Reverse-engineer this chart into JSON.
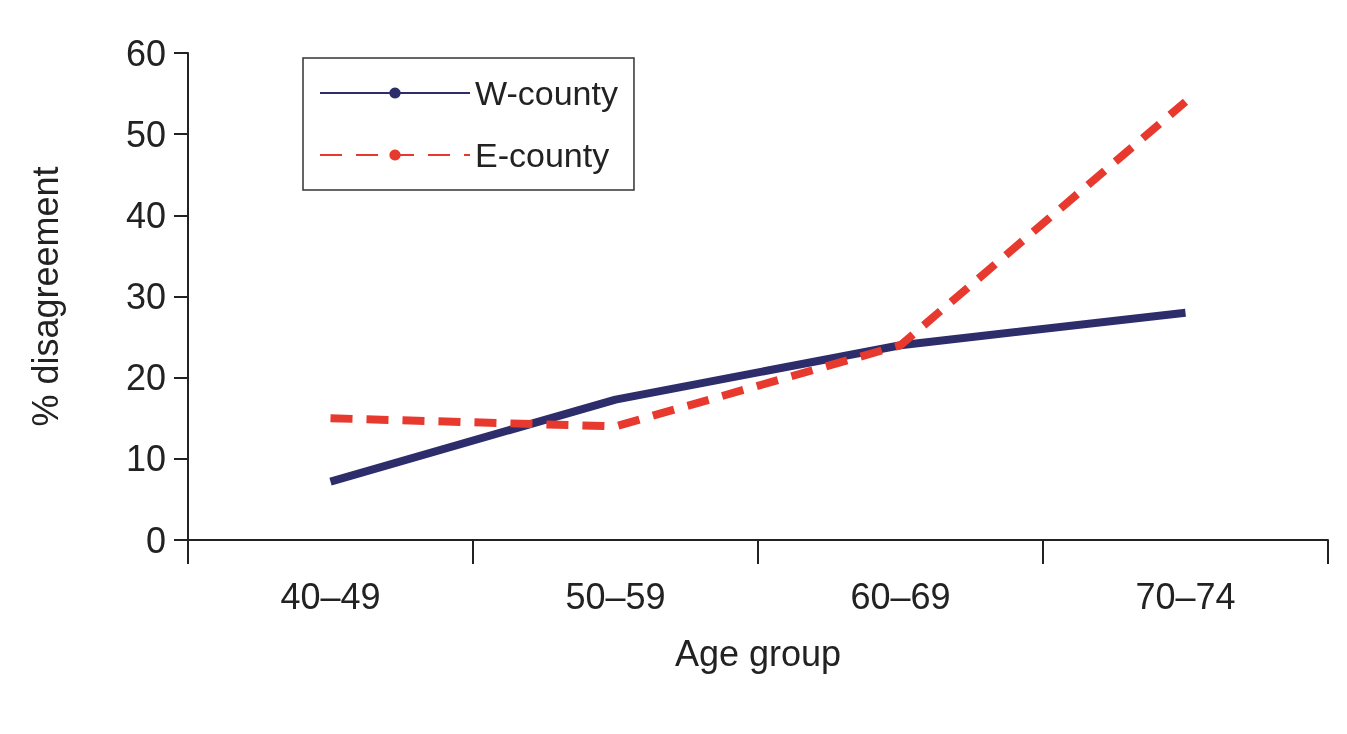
{
  "chart_data": {
    "type": "line",
    "xlabel": "Age group",
    "ylabel": "% disagreement",
    "categories": [
      "40–49",
      "50–59",
      "60–69",
      "70–74"
    ],
    "series": [
      {
        "name": "W-county",
        "color": "#2e2d6b",
        "line_style": "solid",
        "values": [
          7.2,
          17.3,
          24,
          28
        ]
      },
      {
        "name": "E-county",
        "color": "#e8392e",
        "line_style": "dashed",
        "values": [
          15,
          14,
          24,
          54
        ]
      }
    ],
    "ylim": [
      0,
      60
    ],
    "yticks": [
      0,
      10,
      20,
      30,
      40,
      50,
      60
    ],
    "grid": false,
    "legend": "top left",
    "marker": "none"
  }
}
